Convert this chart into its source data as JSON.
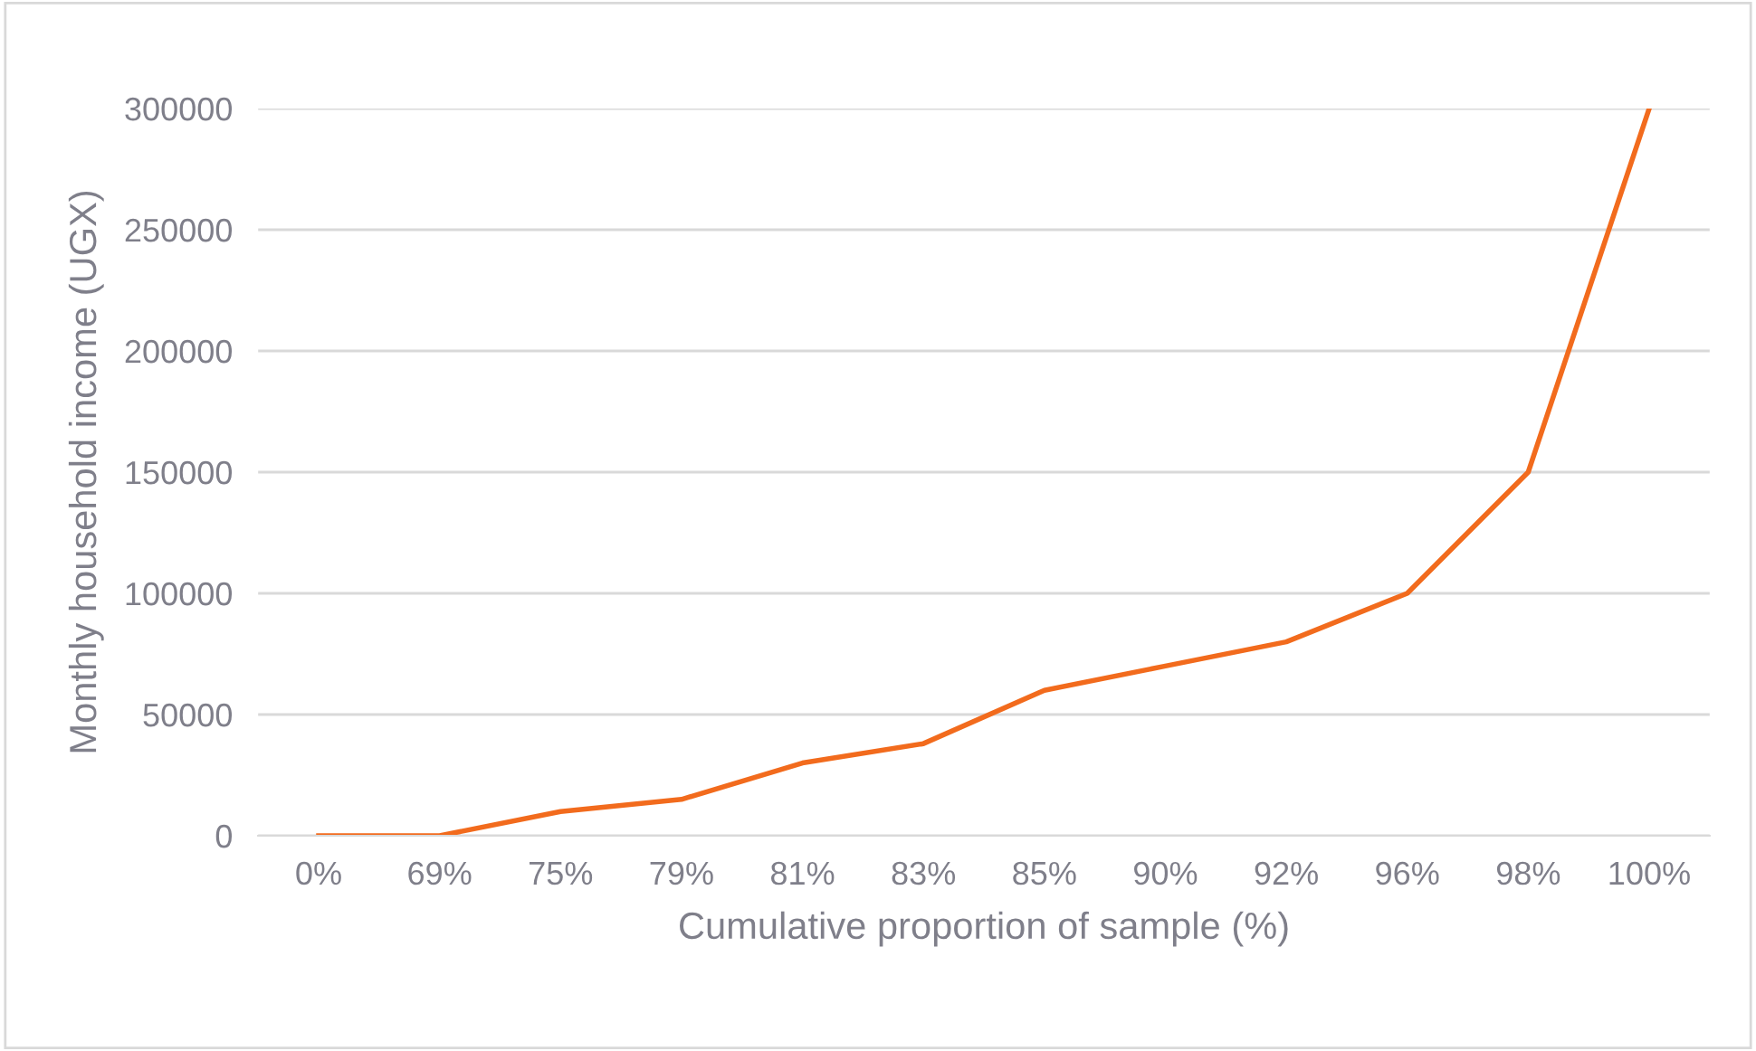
{
  "chart_data": {
    "type": "line",
    "xlabel": "Cumulative proportion of sample (%)",
    "ylabel": "Monthly household income (UGX)",
    "categories": [
      "0%",
      "69%",
      "75%",
      "79%",
      "81%",
      "83%",
      "85%",
      "90%",
      "92%",
      "96%",
      "98%",
      "100%"
    ],
    "series": [
      {
        "color": "#f26b1d",
        "values": [
          0,
          0,
          10000,
          15000,
          30000,
          38000,
          60000,
          70000,
          80000,
          100000,
          150000,
          300000
        ]
      }
    ],
    "ylim": [
      0,
      300000
    ],
    "yticks": [
      0,
      50000,
      100000,
      150000,
      200000,
      250000,
      300000
    ],
    "grid": "y",
    "legend": false,
    "marker": "none",
    "line_style": "solid"
  }
}
